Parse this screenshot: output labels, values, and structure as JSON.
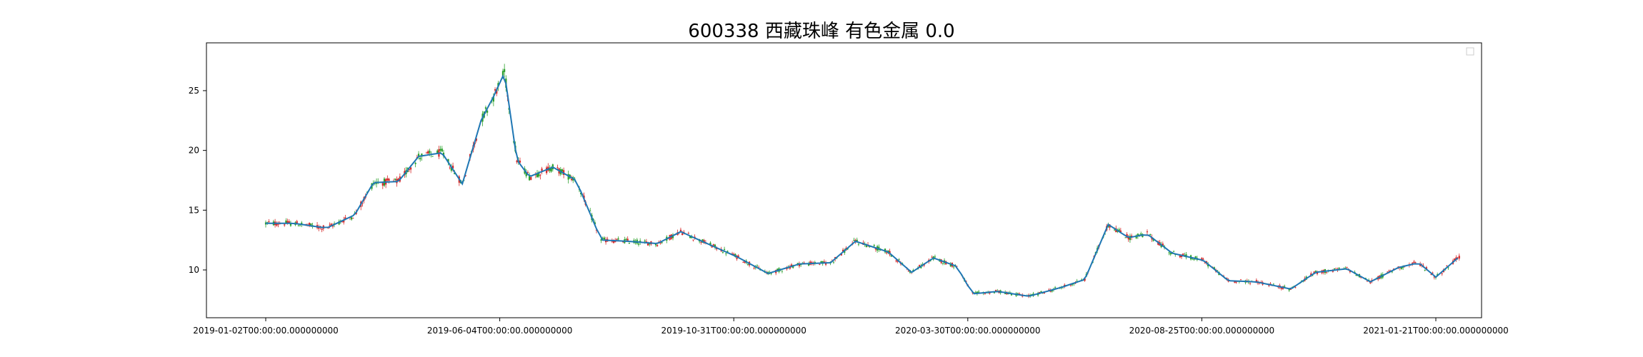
{
  "chart_data": {
    "type": "candlestick",
    "title": "600338 西藏珠峰 有色金属 0.0",
    "xlabel": "",
    "ylabel": "",
    "ylim": [
      6,
      29
    ],
    "grid": false,
    "legend": {
      "placement": "top-right",
      "entries": []
    },
    "colors": {
      "up": "#d62728",
      "down": "#2ca02c",
      "ma": "#1f77b4"
    },
    "x_tick_labels": [
      "2019-01-02T00:00:00.000000000",
      "2019-06-04T00:00:00.000000000",
      "2019-10-31T00:00:00.000000000",
      "2020-03-30T00:00:00.000000000",
      "2020-08-25T00:00:00.000000000",
      "2021-01-21T00:00:00.000000000"
    ],
    "y_ticks": [
      {
        "value": 10,
        "label": "10"
      },
      {
        "value": 15,
        "label": "15"
      },
      {
        "value": 20,
        "label": "20"
      },
      {
        "value": 25,
        "label": "25"
      }
    ],
    "series": [
      {
        "x": [
          "2019-01-02",
          "2019-01-20",
          "2019-02-10",
          "2019-02-28",
          "2019-03-12",
          "2019-03-28",
          "2019-04-10",
          "2019-04-25",
          "2019-05-08",
          "2019-05-20",
          "2019-05-28",
          "2019-06-04",
          "2019-06-12",
          "2019-06-20",
          "2019-07-05",
          "2019-07-20",
          "2019-08-05",
          "2019-08-22",
          "2019-09-10",
          "2019-09-25",
          "2019-10-12",
          "2019-10-31",
          "2019-11-20",
          "2019-12-10",
          "2019-12-30",
          "2020-01-15",
          "2020-02-05",
          "2020-02-20",
          "2020-03-05",
          "2020-03-20",
          "2020-03-30",
          "2020-04-15",
          "2020-05-05",
          "2020-05-25",
          "2020-06-10",
          "2020-06-25",
          "2020-07-08",
          "2020-07-20",
          "2020-08-05",
          "2020-08-25",
          "2020-09-10",
          "2020-09-28",
          "2020-10-20",
          "2020-11-05",
          "2020-11-25",
          "2020-12-10",
          "2020-12-28",
          "2021-01-10",
          "2021-01-21",
          "2021-02-05"
        ],
        "values": [
          13.9,
          13.9,
          13.5,
          14.6,
          17.3,
          17.4,
          19.5,
          19.8,
          17.2,
          22.5,
          24.5,
          26.5,
          19.2,
          17.8,
          18.6,
          17.5,
          12.5,
          12.4,
          12.2,
          13.2,
          12.2,
          11.1,
          9.7,
          10.5,
          10.6,
          12.4,
          11.5,
          9.8,
          11.0,
          10.3,
          8.0,
          8.2,
          7.8,
          8.5,
          9.2,
          13.8,
          12.7,
          13.0,
          11.4,
          10.8,
          9.1,
          9.0,
          8.4,
          9.8,
          10.1,
          9.0,
          10.2,
          10.6,
          9.4,
          11.1
        ]
      }
    ]
  }
}
